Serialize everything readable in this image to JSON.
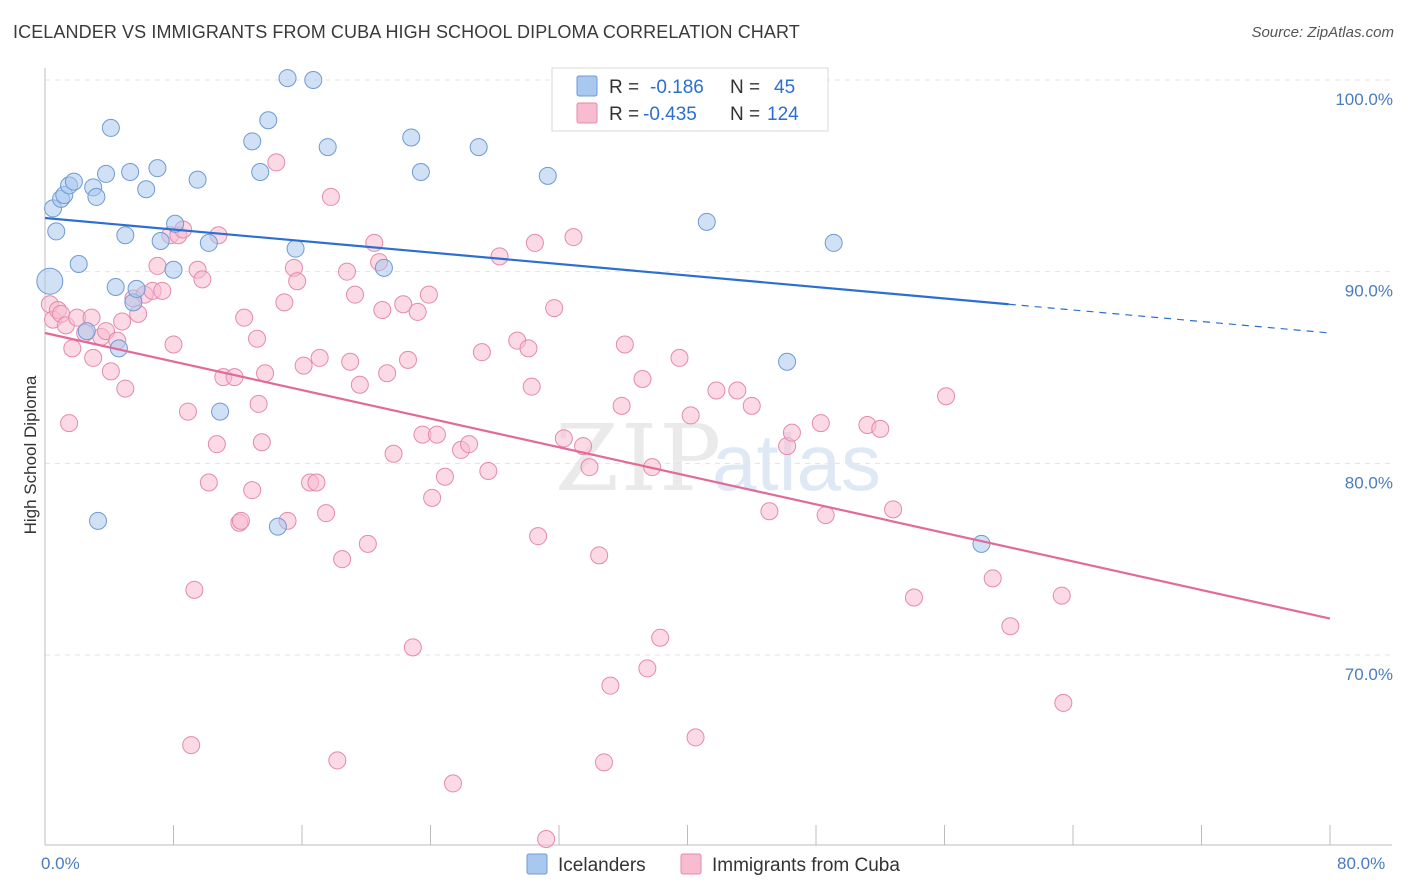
{
  "title": "ICELANDER VS IMMIGRANTS FROM CUBA HIGH SCHOOL DIPLOMA CORRELATION CHART",
  "source": "Source: ZipAtlas.com",
  "watermark": {
    "zip": "ZIP",
    "atlas": "atlas"
  },
  "colors": {
    "blue_fill": "#a9c8ef",
    "blue_stroke": "#6f9ad4",
    "blue_line": "#2c6fd1",
    "pink_fill": "#f7bcd0",
    "pink_stroke": "#e58aaa",
    "pink_line": "#e26a98",
    "tick_text": "#4a7cc0",
    "grid": "#e3e3e3"
  },
  "legend": {
    "rows": [
      {
        "r_label": "R =",
        "r_value": "-0.186",
        "n_label": "N =",
        "n_value": "45"
      },
      {
        "r_label": "R =",
        "r_value": "-0.435",
        "n_label": "N =",
        "n_value": "124"
      }
    ]
  },
  "bottom_legend": [
    "Icelanders",
    "Immigrants from Cuba"
  ],
  "chart_data": {
    "type": "scatter",
    "ylabel": "High School Diploma",
    "x_tick_labels": [
      "0.0%",
      "80.0%"
    ],
    "y_tick_labels": [
      "100.0%",
      "90.0%",
      "80.0%",
      "70.0%"
    ],
    "xlim": [
      0,
      80
    ],
    "ylim": [
      60,
      101
    ],
    "y_ticks": [
      100,
      90,
      80,
      70
    ],
    "grid": "horizontal dashed",
    "legend_position": "top-center",
    "series": [
      {
        "name": "Icelanders",
        "trend": {
          "x0": 0,
          "y0": 92.8,
          "x1": 60,
          "y1": 88.3,
          "dashed_to_x": 80,
          "dashed_to_y": 86.8
        },
        "points": [
          [
            0.3,
            89.5
          ],
          [
            0.5,
            93.3
          ],
          [
            0.7,
            92.1
          ],
          [
            1.0,
            93.8
          ],
          [
            1.2,
            94.0
          ],
          [
            1.5,
            94.5
          ],
          [
            1.8,
            94.7
          ],
          [
            2.1,
            90.4
          ],
          [
            2.6,
            86.9
          ],
          [
            3.0,
            94.4
          ],
          [
            3.2,
            93.9
          ],
          [
            3.3,
            77.0
          ],
          [
            3.8,
            95.1
          ],
          [
            4.1,
            97.5
          ],
          [
            4.4,
            89.2
          ],
          [
            4.6,
            86.0
          ],
          [
            5.0,
            91.9
          ],
          [
            5.3,
            95.2
          ],
          [
            5.5,
            88.4
          ],
          [
            5.7,
            89.1
          ],
          [
            6.3,
            94.3
          ],
          [
            7.0,
            95.4
          ],
          [
            7.2,
            91.6
          ],
          [
            8.0,
            90.1
          ],
          [
            8.1,
            92.5
          ],
          [
            9.5,
            94.8
          ],
          [
            10.2,
            91.5
          ],
          [
            10.9,
            82.7
          ],
          [
            12.9,
            96.8
          ],
          [
            13.4,
            95.2
          ],
          [
            13.9,
            97.9
          ],
          [
            14.5,
            76.7
          ],
          [
            15.1,
            100.1
          ],
          [
            15.6,
            91.2
          ],
          [
            16.7,
            100.0
          ],
          [
            17.6,
            96.5
          ],
          [
            21.1,
            90.2
          ],
          [
            22.8,
            97.0
          ],
          [
            23.4,
            95.2
          ],
          [
            27.0,
            96.5
          ],
          [
            31.3,
            95.0
          ],
          [
            41.2,
            92.6
          ],
          [
            46.2,
            85.3
          ],
          [
            49.1,
            91.5
          ],
          [
            58.3,
            75.8
          ]
        ]
      },
      {
        "name": "Immigrants from Cuba",
        "trend": {
          "x0": 0,
          "y0": 86.8,
          "x1": 80,
          "y1": 71.9
        },
        "points": [
          [
            0.3,
            88.3
          ],
          [
            0.5,
            87.5
          ],
          [
            0.8,
            88.0
          ],
          [
            1.0,
            87.8
          ],
          [
            1.3,
            87.2
          ],
          [
            1.5,
            82.1
          ],
          [
            1.7,
            86.0
          ],
          [
            2.0,
            87.6
          ],
          [
            2.5,
            86.8
          ],
          [
            2.9,
            87.6
          ],
          [
            3.0,
            85.5
          ],
          [
            3.5,
            86.6
          ],
          [
            3.8,
            86.9
          ],
          [
            4.1,
            84.8
          ],
          [
            4.5,
            86.4
          ],
          [
            4.8,
            87.4
          ],
          [
            5.0,
            83.9
          ],
          [
            5.5,
            88.6
          ],
          [
            5.8,
            87.8
          ],
          [
            6.2,
            88.8
          ],
          [
            6.7,
            89.0
          ],
          [
            7.0,
            90.3
          ],
          [
            7.3,
            89.0
          ],
          [
            7.8,
            91.9
          ],
          [
            8.0,
            86.2
          ],
          [
            8.3,
            91.9
          ],
          [
            8.6,
            92.2
          ],
          [
            8.9,
            82.7
          ],
          [
            9.1,
            65.3
          ],
          [
            9.3,
            73.4
          ],
          [
            9.5,
            90.1
          ],
          [
            9.8,
            89.6
          ],
          [
            10.2,
            79.0
          ],
          [
            10.7,
            81.0
          ],
          [
            10.8,
            91.9
          ],
          [
            11.1,
            84.5
          ],
          [
            11.8,
            84.5
          ],
          [
            12.1,
            76.9
          ],
          [
            12.2,
            77.0
          ],
          [
            12.4,
            87.6
          ],
          [
            12.9,
            78.6
          ],
          [
            13.2,
            86.5
          ],
          [
            13.3,
            83.1
          ],
          [
            13.5,
            81.1
          ],
          [
            13.7,
            84.7
          ],
          [
            14.4,
            95.7
          ],
          [
            14.9,
            88.4
          ],
          [
            15.1,
            77.0
          ],
          [
            15.5,
            90.2
          ],
          [
            15.7,
            89.5
          ],
          [
            16.1,
            85.1
          ],
          [
            16.5,
            79.0
          ],
          [
            16.9,
            79.0
          ],
          [
            17.1,
            85.5
          ],
          [
            17.5,
            77.4
          ],
          [
            17.8,
            93.9
          ],
          [
            18.2,
            64.5
          ],
          [
            18.5,
            75.0
          ],
          [
            18.8,
            90.0
          ],
          [
            19.0,
            85.3
          ],
          [
            19.3,
            88.8
          ],
          [
            19.6,
            84.1
          ],
          [
            20.1,
            75.8
          ],
          [
            20.5,
            91.5
          ],
          [
            20.8,
            90.5
          ],
          [
            21.0,
            88.0
          ],
          [
            21.3,
            84.7
          ],
          [
            21.7,
            80.5
          ],
          [
            22.3,
            88.3
          ],
          [
            22.6,
            85.4
          ],
          [
            22.9,
            70.4
          ],
          [
            23.2,
            87.9
          ],
          [
            23.5,
            81.5
          ],
          [
            23.9,
            88.8
          ],
          [
            24.1,
            78.2
          ],
          [
            24.4,
            81.5
          ],
          [
            24.9,
            79.3
          ],
          [
            25.4,
            63.3
          ],
          [
            25.9,
            80.7
          ],
          [
            26.4,
            81.0
          ],
          [
            27.2,
            85.8
          ],
          [
            27.6,
            79.6
          ],
          [
            28.3,
            90.8
          ],
          [
            29.4,
            86.4
          ],
          [
            30.1,
            86.0
          ],
          [
            30.3,
            84.0
          ],
          [
            30.5,
            91.5
          ],
          [
            30.7,
            76.2
          ],
          [
            31.2,
            60.4
          ],
          [
            31.7,
            88.1
          ],
          [
            32.3,
            81.3
          ],
          [
            32.9,
            91.8
          ],
          [
            33.5,
            80.9
          ],
          [
            33.9,
            79.8
          ],
          [
            34.5,
            75.2
          ],
          [
            34.8,
            64.4
          ],
          [
            35.2,
            68.4
          ],
          [
            35.9,
            83.0
          ],
          [
            36.1,
            86.2
          ],
          [
            37.2,
            84.4
          ],
          [
            37.5,
            69.3
          ],
          [
            37.8,
            79.8
          ],
          [
            38.3,
            70.9
          ],
          [
            39.5,
            85.5
          ],
          [
            40.2,
            82.5
          ],
          [
            40.5,
            65.7
          ],
          [
            41.8,
            83.8
          ],
          [
            43.1,
            83.8
          ],
          [
            44.0,
            83.0
          ],
          [
            45.1,
            77.5
          ],
          [
            46.2,
            80.9
          ],
          [
            46.5,
            81.6
          ],
          [
            48.3,
            82.1
          ],
          [
            48.6,
            77.3
          ],
          [
            51.2,
            82.0
          ],
          [
            52.0,
            81.8
          ],
          [
            52.8,
            77.6
          ],
          [
            54.1,
            73.0
          ],
          [
            56.1,
            83.5
          ],
          [
            59.0,
            74.0
          ],
          [
            60.1,
            71.5
          ],
          [
            63.3,
            73.1
          ],
          [
            63.4,
            67.5
          ]
        ]
      }
    ]
  }
}
